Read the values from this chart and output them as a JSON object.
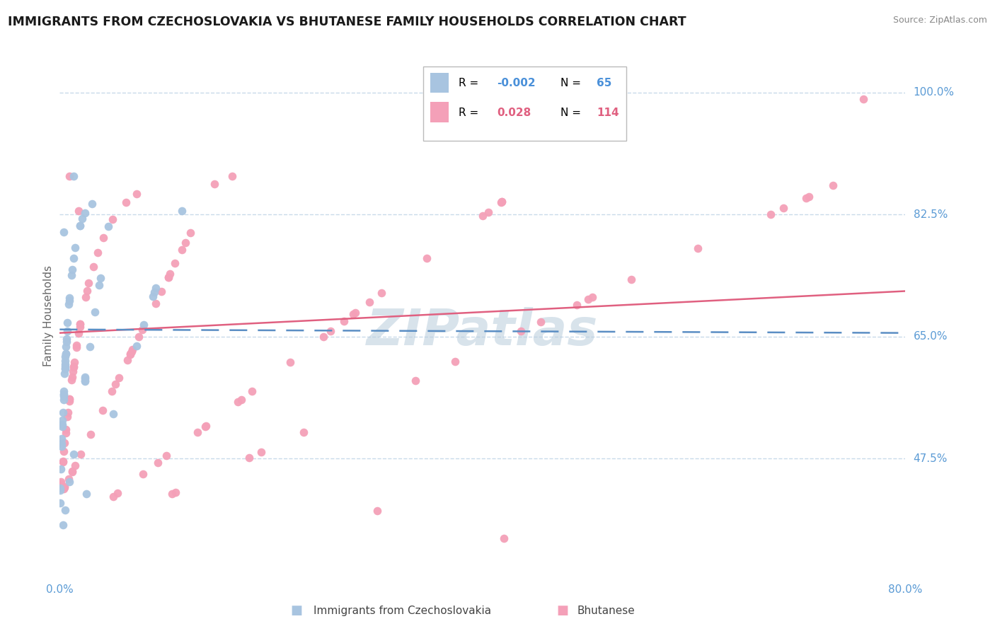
{
  "title": "IMMIGRANTS FROM CZECHOSLOVAKIA VS BHUTANESE FAMILY HOUSEHOLDS CORRELATION CHART",
  "source": "Source: ZipAtlas.com",
  "ylabel": "Family Households",
  "xmin": 0.0,
  "xmax": 0.8,
  "ymin": 0.3,
  "ymax": 1.06,
  "yticks": [
    0.475,
    0.65,
    0.825,
    1.0
  ],
  "ytick_labels": [
    "47.5%",
    "65.0%",
    "82.5%",
    "100.0%"
  ],
  "xtick_labels": [
    "0.0%",
    "80.0%"
  ],
  "color_czech": "#a8c4e0",
  "color_bhutan": "#f4a0b8",
  "trendline_czech_color": "#5b8ec4",
  "trendline_bhutan_color": "#e06080",
  "watermark": "ZIPatlas",
  "background_color": "#ffffff",
  "grid_color": "#c8daea",
  "legend_r1_label": "R = ",
  "legend_r1_val": "-0.002",
  "legend_n1_label": "N = ",
  "legend_n1_val": "65",
  "legend_r2_label": "R = ",
  "legend_r2_val": "0.028",
  "legend_n2_label": "N = ",
  "legend_n2_val": "114",
  "legend_val_color1": "#4a90d9",
  "legend_val_color2": "#e06080",
  "bottom_legend1": "Immigrants from Czechoslovakia",
  "bottom_legend2": "Bhutanese"
}
